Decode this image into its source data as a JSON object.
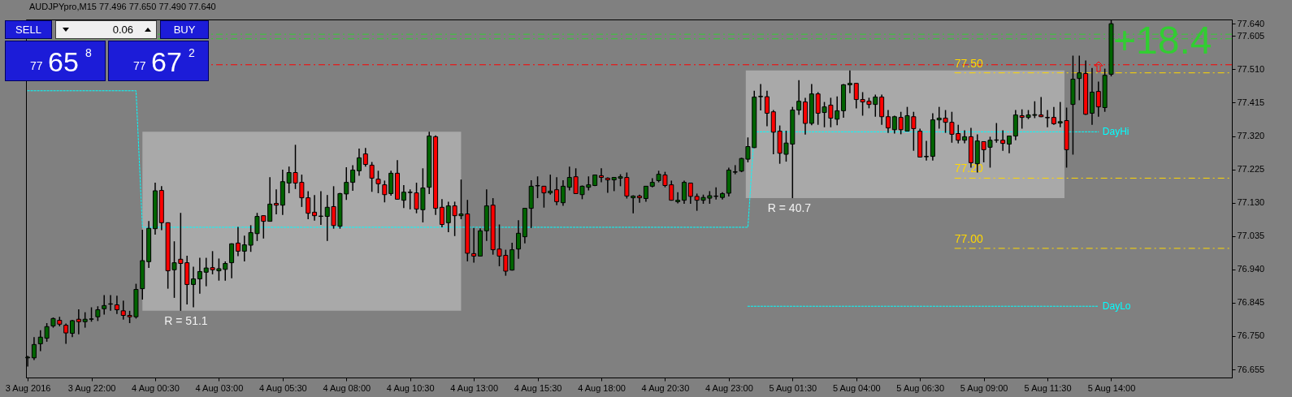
{
  "chart_data": {
    "type": "candlestick",
    "title": "AUDJPYpro,M15 77.496 77.650 77.490 77.640",
    "annotations": [
      "SELL",
      "0.06",
      "BUY",
      "77 65 8",
      "77 67 2",
      "+18.4"
    ],
    "colors": [
      "#006400",
      "#006400",
      "#006400",
      "#006400",
      "#006400",
      "#ff0000",
      "#ff0000",
      "#006400",
      "#ff0000",
      "#006400",
      "#006400",
      "#006400",
      "#006400",
      "#006400",
      "#ff0000",
      "#ff0000",
      "#ff0000",
      "#006400",
      "#006400",
      "#006400",
      "#006400",
      "#ff0000",
      "#ff0000",
      "#006400",
      "#ff0000",
      "#ff0000",
      "#006400",
      "#006400",
      "#006400",
      "#ff0000",
      "#006400",
      "#006400",
      "#006400",
      "#ff0000",
      "#006400",
      "#006400",
      "#006400",
      "#ff0000",
      "#006400",
      "#ff0000",
      "#006400",
      "#006400",
      "#ff0000",
      "#ff0000",
      "#ff0000",
      "#ff0000",
      "#006400",
      "#006400",
      "#ff0000",
      "#006400",
      "#006400",
      "#006400",
      "#006400",
      "#ff0000",
      "#ff0000",
      "#ff0000",
      "#ff0000",
      "#006400",
      "#ff0000",
      "#006400",
      "#006400",
      "#ff0000",
      "#006400",
      "#006400",
      "#ff0000",
      "#ff0000",
      "#006400",
      "#ff0000",
      "#006400",
      "#ff0000",
      "#ff0000",
      "#006400",
      "#006400",
      "#ff0000",
      "#ff0000",
      "#ff0000",
      "#006400",
      "#006400",
      "#006400",
      "#006400",
      "#006400",
      "#ff0000",
      "#006400",
      "#ff0000",
      "#006400",
      "#006400",
      "#ff0000",
      "#006400",
      "#006400",
      "#006400",
      "#ff0000",
      "#ff0000",
      "#006400",
      "#006400",
      "#ff0000",
      "#006400",
      "#ff0000",
      "#006400",
      "#006400",
      "#006400",
      "#ff0000",
      "#ff0000",
      "#006400",
      "#006400",
      "#ff0000",
      "#ff0000",
      "#006400",
      "#006400",
      "#006400",
      "#006400",
      "#006400",
      "#006400",
      "#006400",
      "#006400",
      "#006400",
      "#006400",
      "#ff0000",
      "#ff0000",
      "#ff0000",
      "#006400",
      "#006400",
      "#006400",
      "#ff0000",
      "#006400",
      "#ff0000",
      "#006400",
      "#ff0000",
      "#006400",
      "#006400",
      "#006400",
      "#ff0000",
      "#ff0000",
      "#ff0000",
      "#006400",
      "#ff0000",
      "#ff0000",
      "#006400",
      "#ff0000",
      "#006400",
      "#ff0000",
      "#ff0000",
      "#006400",
      "#006400",
      "#006400",
      "#ff0000",
      "#ff0000",
      "#ff0000",
      "#006400",
      "#ff0000",
      "#006400",
      "#ff0000",
      "#006400",
      "#006400",
      "#ff0000",
      "#006400",
      "#006400",
      "#ff0000",
      "#006400",
      "#006400",
      "#ff0000",
      "#ff0000",
      "#ff0000",
      "#006400",
      "#ff0000",
      "#006400",
      "#006400",
      "#ff0000",
      "#006400",
      "#ff0000",
      "#006400",
      "#006400"
    ],
    "xlim": [
      "2016-08-03T19:26",
      "2016-08-05T18:44"
    ],
    "xticks": [
      {
        "value": "2016-08-03T19:30",
        "label": "3 Aug 2016"
      },
      {
        "value": "2016-08-03T22:00",
        "label": "3 Aug 22:00"
      },
      {
        "value": "2016-08-04T00:30",
        "label": "4 Aug 00:30"
      },
      {
        "value": "2016-08-04T03:00",
        "label": "4 Aug 03:00"
      },
      {
        "value": "2016-08-04T05:30",
        "label": "4 Aug 05:30"
      },
      {
        "value": "2016-08-04T08:00",
        "label": "4 Aug 08:00"
      },
      {
        "value": "2016-08-04T10:30",
        "label": "4 Aug 10:30"
      },
      {
        "value": "2016-08-04T13:00",
        "label": "4 Aug 13:00"
      },
      {
        "value": "2016-08-04T15:30",
        "label": "4 Aug 15:30"
      },
      {
        "value": "2016-08-04T18:00",
        "label": "4 Aug 18:00"
      },
      {
        "value": "2016-08-04T20:30",
        "label": "4 Aug 20:30"
      },
      {
        "value": "2016-08-04T23:00",
        "label": "4 Aug 23:00"
      },
      {
        "value": "2016-08-05T01:30",
        "label": "5 Aug 01:30"
      },
      {
        "value": "2016-08-05T04:00",
        "label": "5 Aug 04:00"
      },
      {
        "value": "2016-08-05T06:30",
        "label": "5 Aug 06:30"
      },
      {
        "value": "2016-08-05T09:00",
        "label": "5 Aug 09:00"
      },
      {
        "value": "2016-08-05T11:30",
        "label": "5 Aug 11:30"
      },
      {
        "value": "2016-08-05T14:00",
        "label": "5 Aug 14:00"
      }
    ],
    "ylim": [
      76.632,
      77.652
    ],
    "yticks": [
      {
        "value": 77.64,
        "label": "77.640"
      },
      77.605,
      {
        "value": 77.51,
        "label": "77.510"
      },
      77.415,
      {
        "value": 77.32,
        "label": "77.320"
      },
      77.225,
      {
        "value": 77.13,
        "label": "77.130"
      },
      77.035,
      {
        "value": 76.94,
        "label": "76.940"
      },
      76.845,
      {
        "value": 76.75,
        "label": "76.750"
      },
      76.655
    ],
    "x": [
      "2016-08-03T19:30",
      "2016-08-03T19:45",
      "2016-08-03T20:00",
      "2016-08-03T20:15",
      "2016-08-03T20:30",
      "2016-08-03T20:45",
      "2016-08-03T21:00",
      "2016-08-03T21:15",
      "2016-08-03T21:30",
      "2016-08-03T21:45",
      "2016-08-03T22:00",
      "2016-08-03T22:15",
      "2016-08-03T22:30",
      "2016-08-03T22:45",
      "2016-08-03T23:00",
      "2016-08-03T23:15",
      "2016-08-03T23:30",
      "2016-08-03T23:45",
      "2016-08-04T00:00",
      "2016-08-04T00:15",
      "2016-08-04T00:30",
      "2016-08-04T00:45",
      "2016-08-04T01:00",
      "2016-08-04T01:15",
      "2016-08-04T01:30",
      "2016-08-04T01:45",
      "2016-08-04T02:00",
      "2016-08-04T02:15",
      "2016-08-04T02:30",
      "2016-08-04T02:45",
      "2016-08-04T03:00",
      "2016-08-04T03:15",
      "2016-08-04T03:30",
      "2016-08-04T03:45",
      "2016-08-04T04:00",
      "2016-08-04T04:15",
      "2016-08-04T04:30",
      "2016-08-04T04:45",
      "2016-08-04T05:00",
      "2016-08-04T05:15",
      "2016-08-04T05:30",
      "2016-08-04T05:45",
      "2016-08-04T06:00",
      "2016-08-04T06:15",
      "2016-08-04T06:30",
      "2016-08-04T06:45",
      "2016-08-04T07:00",
      "2016-08-04T07:15",
      "2016-08-04T07:30",
      "2016-08-04T07:45",
      "2016-08-04T08:00",
      "2016-08-04T08:15",
      "2016-08-04T08:30",
      "2016-08-04T08:45",
      "2016-08-04T09:00",
      "2016-08-04T09:15",
      "2016-08-04T09:30",
      "2016-08-04T09:45",
      "2016-08-04T10:00",
      "2016-08-04T10:15",
      "2016-08-04T10:30",
      "2016-08-04T10:45",
      "2016-08-04T11:00",
      "2016-08-04T11:15",
      "2016-08-04T11:30",
      "2016-08-04T11:45",
      "2016-08-04T12:00",
      "2016-08-04T12:15",
      "2016-08-04T12:30",
      "2016-08-04T12:45",
      "2016-08-04T13:00",
      "2016-08-04T13:15",
      "2016-08-04T13:30",
      "2016-08-04T13:45",
      "2016-08-04T14:00",
      "2016-08-04T14:15",
      "2016-08-04T14:30",
      "2016-08-04T14:45",
      "2016-08-04T15:00",
      "2016-08-04T15:15",
      "2016-08-04T15:30",
      "2016-08-04T15:45",
      "2016-08-04T16:00",
      "2016-08-04T16:15",
      "2016-08-04T16:30",
      "2016-08-04T16:45",
      "2016-08-04T17:00",
      "2016-08-04T17:15",
      "2016-08-04T17:30",
      "2016-08-04T17:45",
      "2016-08-04T18:00",
      "2016-08-04T18:15",
      "2016-08-04T18:30",
      "2016-08-04T18:45",
      "2016-08-04T19:00",
      "2016-08-04T19:15",
      "2016-08-04T19:30",
      "2016-08-04T19:45",
      "2016-08-04T20:00",
      "2016-08-04T20:15",
      "2016-08-04T20:30",
      "2016-08-04T20:45",
      "2016-08-04T21:00",
      "2016-08-04T21:15",
      "2016-08-04T21:30",
      "2016-08-04T21:45",
      "2016-08-04T22:00",
      "2016-08-04T22:15",
      "2016-08-04T22:30",
      "2016-08-04T22:45",
      "2016-08-04T23:00",
      "2016-08-04T23:15",
      "2016-08-04T23:30",
      "2016-08-04T23:45",
      "2016-08-05T00:00",
      "2016-08-05T00:15",
      "2016-08-05T00:30",
      "2016-08-05T00:45",
      "2016-08-05T01:00",
      "2016-08-05T01:15",
      "2016-08-05T01:30",
      "2016-08-05T01:45",
      "2016-08-05T02:00",
      "2016-08-05T02:15",
      "2016-08-05T02:30",
      "2016-08-05T02:45",
      "2016-08-05T03:00",
      "2016-08-05T03:15",
      "2016-08-05T03:30",
      "2016-08-05T03:45",
      "2016-08-05T04:00",
      "2016-08-05T04:15",
      "2016-08-05T04:30",
      "2016-08-05T04:45",
      "2016-08-05T05:00",
      "2016-08-05T05:15",
      "2016-08-05T05:30",
      "2016-08-05T05:45",
      "2016-08-05T06:00",
      "2016-08-05T06:15",
      "2016-08-05T06:30",
      "2016-08-05T06:45",
      "2016-08-05T07:00",
      "2016-08-05T07:15",
      "2016-08-05T07:30",
      "2016-08-05T07:45",
      "2016-08-05T08:00",
      "2016-08-05T08:15",
      "2016-08-05T08:30",
      "2016-08-05T08:45",
      "2016-08-05T09:00",
      "2016-08-05T09:15",
      "2016-08-05T09:30",
      "2016-08-05T09:45",
      "2016-08-05T10:00",
      "2016-08-05T10:15",
      "2016-08-05T10:30",
      "2016-08-05T10:45",
      "2016-08-05T11:00",
      "2016-08-05T11:15",
      "2016-08-05T11:30",
      "2016-08-05T11:45",
      "2016-08-05T12:00",
      "2016-08-05T12:15",
      "2016-08-05T12:30",
      "2016-08-05T12:45",
      "2016-08-05T13:00",
      "2016-08-05T13:15",
      "2016-08-05T13:30",
      "2016-08-05T13:45",
      "2016-08-05T14:00"
    ],
    "ohlc": [
      [
        76.688,
        76.694,
        76.663,
        76.69
      ],
      [
        76.688,
        76.747,
        76.682,
        76.726
      ],
      [
        76.728,
        76.767,
        76.707,
        76.747
      ],
      [
        76.744,
        76.787,
        76.734,
        76.777
      ],
      [
        76.779,
        76.803,
        76.774,
        76.8
      ],
      [
        76.795,
        76.805,
        76.778,
        76.784
      ],
      [
        76.781,
        76.786,
        76.728,
        76.759
      ],
      [
        76.758,
        76.796,
        76.747,
        76.794
      ],
      [
        76.798,
        76.826,
        76.755,
        76.791
      ],
      [
        76.791,
        76.818,
        76.774,
        76.798
      ],
      [
        76.798,
        76.832,
        76.791,
        76.799
      ],
      [
        76.805,
        76.835,
        76.793,
        76.825
      ],
      [
        76.828,
        76.867,
        76.811,
        76.837
      ],
      [
        76.841,
        76.867,
        76.822,
        76.842
      ],
      [
        76.839,
        76.865,
        76.813,
        76.825
      ],
      [
        76.822,
        76.851,
        76.797,
        76.809
      ],
      [
        76.809,
        76.822,
        76.787,
        76.805
      ],
      [
        76.805,
        76.899,
        76.8,
        76.883
      ],
      [
        76.885,
        77.053,
        76.854,
        76.965
      ],
      [
        76.962,
        77.078,
        76.944,
        77.057
      ],
      [
        77.056,
        77.187,
        77.039,
        77.164
      ],
      [
        77.165,
        77.177,
        77.052,
        77.073
      ],
      [
        77.073,
        77.074,
        76.885,
        76.936
      ],
      [
        76.939,
        77.02,
        76.859,
        76.959
      ],
      [
        76.969,
        77.101,
        76.822,
        76.957
      ],
      [
        76.959,
        76.979,
        76.84,
        76.897
      ],
      [
        76.897,
        76.948,
        76.832,
        76.913
      ],
      [
        76.913,
        76.973,
        76.871,
        76.934
      ],
      [
        76.932,
        76.973,
        76.892,
        76.944
      ],
      [
        76.945,
        76.992,
        76.926,
        76.939
      ],
      [
        76.936,
        76.971,
        76.908,
        76.942
      ],
      [
        76.94,
        76.963,
        76.908,
        76.957
      ],
      [
        76.959,
        77.014,
        76.915,
        77.013
      ],
      [
        77.015,
        77.061,
        76.978,
        76.992
      ],
      [
        76.992,
        77.036,
        76.963,
        77.01
      ],
      [
        77.009,
        77.066,
        76.99,
        77.045
      ],
      [
        77.042,
        77.101,
        77.021,
        77.091
      ],
      [
        77.093,
        77.094,
        77.028,
        77.077
      ],
      [
        77.077,
        77.203,
        77.076,
        77.126
      ],
      [
        77.128,
        77.168,
        77.097,
        77.123
      ],
      [
        77.123,
        77.224,
        77.095,
        77.19
      ],
      [
        77.186,
        77.233,
        77.157,
        77.216
      ],
      [
        77.216,
        77.295,
        77.169,
        77.186
      ],
      [
        77.188,
        77.21,
        77.118,
        77.144
      ],
      [
        77.144,
        77.163,
        77.083,
        77.1
      ],
      [
        77.103,
        77.152,
        77.079,
        77.093
      ],
      [
        77.091,
        77.163,
        77.067,
        77.092
      ],
      [
        77.091,
        77.152,
        77.021,
        77.117
      ],
      [
        77.119,
        77.177,
        77.056,
        77.065
      ],
      [
        77.063,
        77.158,
        77.056,
        77.156
      ],
      [
        77.155,
        77.231,
        77.138,
        77.188
      ],
      [
        77.188,
        77.237,
        77.164,
        77.223
      ],
      [
        77.221,
        77.284,
        77.207,
        77.258
      ],
      [
        77.269,
        77.286,
        77.233,
        77.239
      ],
      [
        77.237,
        77.246,
        77.161,
        77.2
      ],
      [
        77.197,
        77.221,
        77.157,
        77.184
      ],
      [
        77.181,
        77.193,
        77.131,
        77.153
      ],
      [
        77.156,
        77.221,
        77.15,
        77.214
      ],
      [
        77.214,
        77.251,
        77.139,
        77.14
      ],
      [
        77.137,
        77.18,
        77.115,
        77.16
      ],
      [
        77.159,
        77.168,
        77.111,
        77.16
      ],
      [
        77.158,
        77.187,
        77.1,
        77.112
      ],
      [
        77.11,
        77.228,
        77.074,
        77.172
      ],
      [
        77.174,
        77.332,
        77.155,
        77.32
      ],
      [
        77.318,
        77.322,
        77.095,
        77.114
      ],
      [
        77.117,
        77.14,
        77.06,
        77.068
      ],
      [
        77.073,
        77.133,
        77.046,
        77.121
      ],
      [
        77.121,
        77.133,
        77.035,
        77.093
      ],
      [
        77.093,
        77.196,
        77.083,
        77.098
      ],
      [
        77.098,
        77.138,
        76.963,
        76.986
      ],
      [
        76.985,
        77.058,
        76.959,
        76.978
      ],
      [
        76.978,
        77.057,
        76.977,
        77.05
      ],
      [
        77.05,
        77.168,
        77.021,
        77.121
      ],
      [
        77.123,
        77.143,
        76.982,
        76.996
      ],
      [
        76.998,
        77.068,
        76.949,
        76.978
      ],
      [
        76.98,
        76.996,
        76.922,
        76.935
      ],
      [
        76.938,
        77.016,
        76.937,
        76.996
      ],
      [
        76.998,
        77.08,
        76.97,
        77.043
      ],
      [
        77.033,
        77.115,
        77.014,
        77.114
      ],
      [
        77.114,
        77.194,
        77.058,
        77.177
      ],
      [
        77.178,
        77.205,
        77.143,
        77.179
      ],
      [
        77.177,
        77.178,
        77.116,
        77.158
      ],
      [
        77.158,
        77.21,
        77.153,
        77.163
      ],
      [
        77.167,
        77.203,
        77.123,
        77.133
      ],
      [
        77.13,
        77.194,
        77.121,
        77.177
      ],
      [
        77.174,
        77.233,
        77.165,
        77.202
      ],
      [
        77.204,
        77.228,
        77.155,
        77.156
      ],
      [
        77.153,
        77.179,
        77.14,
        77.177
      ],
      [
        77.174,
        77.205,
        77.165,
        77.181
      ],
      [
        77.179,
        77.21,
        77.177,
        77.209
      ],
      [
        77.207,
        77.228,
        77.188,
        77.202
      ],
      [
        77.2,
        77.202,
        77.158,
        77.195
      ],
      [
        77.195,
        77.203,
        77.163,
        77.202
      ],
      [
        77.2,
        77.211,
        77.177,
        77.204
      ],
      [
        77.202,
        77.216,
        77.142,
        77.149
      ],
      [
        77.144,
        77.151,
        77.1,
        77.149
      ],
      [
        77.149,
        77.153,
        77.13,
        77.144
      ],
      [
        77.142,
        77.178,
        77.133,
        77.177
      ],
      [
        77.177,
        77.2,
        77.174,
        77.188
      ],
      [
        77.193,
        77.221,
        77.188,
        77.211
      ],
      [
        77.209,
        77.218,
        77.174,
        77.179
      ],
      [
        77.181,
        77.193,
        77.136,
        77.137
      ],
      [
        77.133,
        77.16,
        77.128,
        77.137
      ],
      [
        77.137,
        77.193,
        77.127,
        77.188
      ],
      [
        77.186,
        77.187,
        77.127,
        77.148
      ],
      [
        77.148,
        77.156,
        77.107,
        77.137
      ],
      [
        77.137,
        77.153,
        77.127,
        77.145
      ],
      [
        77.143,
        77.163,
        77.127,
        77.15
      ],
      [
        77.148,
        77.174,
        77.139,
        77.149
      ],
      [
        77.145,
        77.16,
        77.139,
        77.156
      ],
      [
        77.157,
        77.23,
        77.148,
        77.223
      ],
      [
        77.217,
        77.237,
        77.211,
        77.218
      ],
      [
        77.22,
        77.258,
        77.217,
        77.256
      ],
      [
        77.254,
        77.316,
        77.245,
        77.29
      ],
      [
        77.287,
        77.449,
        77.286,
        77.431
      ],
      [
        77.432,
        77.468,
        77.393,
        77.433
      ],
      [
        77.432,
        77.449,
        77.348,
        77.385
      ],
      [
        77.389,
        77.394,
        77.268,
        77.331
      ],
      [
        77.334,
        77.35,
        77.241,
        77.271
      ],
      [
        77.268,
        77.335,
        77.247,
        77.3
      ],
      [
        77.297,
        77.403,
        77.143,
        77.394
      ],
      [
        77.394,
        77.479,
        77.38,
        77.419
      ],
      [
        77.417,
        77.429,
        77.324,
        77.356
      ],
      [
        77.356,
        77.468,
        77.351,
        77.44
      ],
      [
        77.44,
        77.445,
        77.352,
        77.385
      ],
      [
        77.387,
        77.417,
        77.345,
        77.403
      ],
      [
        77.408,
        77.429,
        77.345,
        77.371
      ],
      [
        77.368,
        77.433,
        77.351,
        77.392
      ],
      [
        77.392,
        77.468,
        77.372,
        77.466
      ],
      [
        77.466,
        77.507,
        77.442,
        77.47
      ],
      [
        77.47,
        77.471,
        77.399,
        77.424
      ],
      [
        77.424,
        77.445,
        77.378,
        77.417
      ],
      [
        77.419,
        77.429,
        77.399,
        77.41
      ],
      [
        77.41,
        77.438,
        77.375,
        77.431
      ],
      [
        77.431,
        77.438,
        77.352,
        77.375
      ],
      [
        77.375,
        77.394,
        77.329,
        77.343
      ],
      [
        77.338,
        77.378,
        77.327,
        77.375
      ],
      [
        77.373,
        77.389,
        77.325,
        77.338
      ],
      [
        77.334,
        77.403,
        77.333,
        77.378
      ],
      [
        77.375,
        77.389,
        77.278,
        77.341
      ],
      [
        77.334,
        77.341,
        77.259,
        77.26
      ],
      [
        77.261,
        77.306,
        77.25,
        77.262
      ],
      [
        77.262,
        77.385,
        77.25,
        77.366
      ],
      [
        77.366,
        77.403,
        77.341,
        77.371
      ],
      [
        77.371,
        77.394,
        77.329,
        77.359
      ],
      [
        77.359,
        77.389,
        77.301,
        77.325
      ],
      [
        77.327,
        77.352,
        77.299,
        77.308
      ],
      [
        77.308,
        77.336,
        77.299,
        77.318
      ],
      [
        77.318,
        77.343,
        77.23,
        77.244
      ],
      [
        77.241,
        77.325,
        77.216,
        77.306
      ],
      [
        77.304,
        77.305,
        77.245,
        77.281
      ],
      [
        77.288,
        77.318,
        77.23,
        77.308
      ],
      [
        77.308,
        77.357,
        77.301,
        77.309
      ],
      [
        77.308,
        77.336,
        77.278,
        77.299
      ],
      [
        77.297,
        77.321,
        77.271,
        77.32
      ],
      [
        77.32,
        77.394,
        77.308,
        77.38
      ],
      [
        77.378,
        77.396,
        77.341,
        77.373
      ],
      [
        77.373,
        77.394,
        77.368,
        77.38
      ],
      [
        77.379,
        77.419,
        77.371,
        77.381
      ],
      [
        77.38,
        77.431,
        77.374,
        77.375
      ],
      [
        77.373,
        77.394,
        77.345,
        77.372
      ],
      [
        77.373,
        77.403,
        77.352,
        77.355
      ],
      [
        77.357,
        77.417,
        77.345,
        77.361
      ],
      [
        77.364,
        77.401,
        77.23,
        77.281
      ],
      [
        77.41,
        77.549,
        77.267,
        77.482
      ],
      [
        77.484,
        77.549,
        77.422,
        77.5
      ],
      [
        77.498,
        77.535,
        77.38,
        77.382
      ],
      [
        77.385,
        77.514,
        77.352,
        77.445
      ],
      [
        77.447,
        77.475,
        77.375,
        77.403
      ],
      [
        77.401,
        77.512,
        77.389,
        77.493
      ],
      [
        77.496,
        77.65,
        77.49,
        77.64
      ]
    ],
    "series": [
      {
        "name": "DayHi",
        "type": "line",
        "color": "#00ffff",
        "line_style": "dotted",
        "x": [
          "2016-08-03T19:30",
          "2016-08-03T23:45",
          "2016-08-04T00:00",
          "2016-08-04T23:45",
          "2016-08-05T00:00",
          "2016-08-05T13:30"
        ],
        "values": [
          77.449,
          77.449,
          77.06,
          77.06,
          77.332,
          77.332
        ]
      },
      {
        "name": "DayLo",
        "type": "line",
        "color": "#00ffff",
        "line_style": "dotted",
        "x": [
          "2016-08-04T23:45",
          "2016-08-05T13:30"
        ],
        "values": [
          76.835,
          76.835
        ]
      }
    ],
    "ref_lines": [
      {
        "axis": "y",
        "value": 77.61,
        "color": "#32cd32",
        "line_style": "dashed"
      },
      {
        "axis": "y",
        "value": 77.597,
        "color": "#32cd32",
        "line_style": "dashed"
      },
      {
        "axis": "y",
        "value": 77.523,
        "color": "#ff0000",
        "line_style": "dashed"
      },
      {
        "axis": "y",
        "value": 77.5,
        "label": "77.50",
        "color": "#ffd700",
        "line_style": "dashed"
      },
      {
        "axis": "y",
        "value": 77.2,
        "label": "77.20",
        "color": "#ffd700",
        "line_style": "dashed"
      },
      {
        "axis": "y",
        "value": 77.0,
        "label": "77.00",
        "color": "#ffd700",
        "line_style": "dashed"
      }
    ],
    "bands": [
      {
        "axis": "x",
        "from": "2016-08-04T00:00",
        "to": "2016-08-04T12:30",
        "label": "R = 51.1",
        "color": "#a9a9a9"
      },
      {
        "axis": "x",
        "from": "2016-08-04T23:40",
        "to": "2016-08-05T12:10",
        "label": "R = 40.7",
        "color": "#a9a9a9"
      }
    ]
  }
}
